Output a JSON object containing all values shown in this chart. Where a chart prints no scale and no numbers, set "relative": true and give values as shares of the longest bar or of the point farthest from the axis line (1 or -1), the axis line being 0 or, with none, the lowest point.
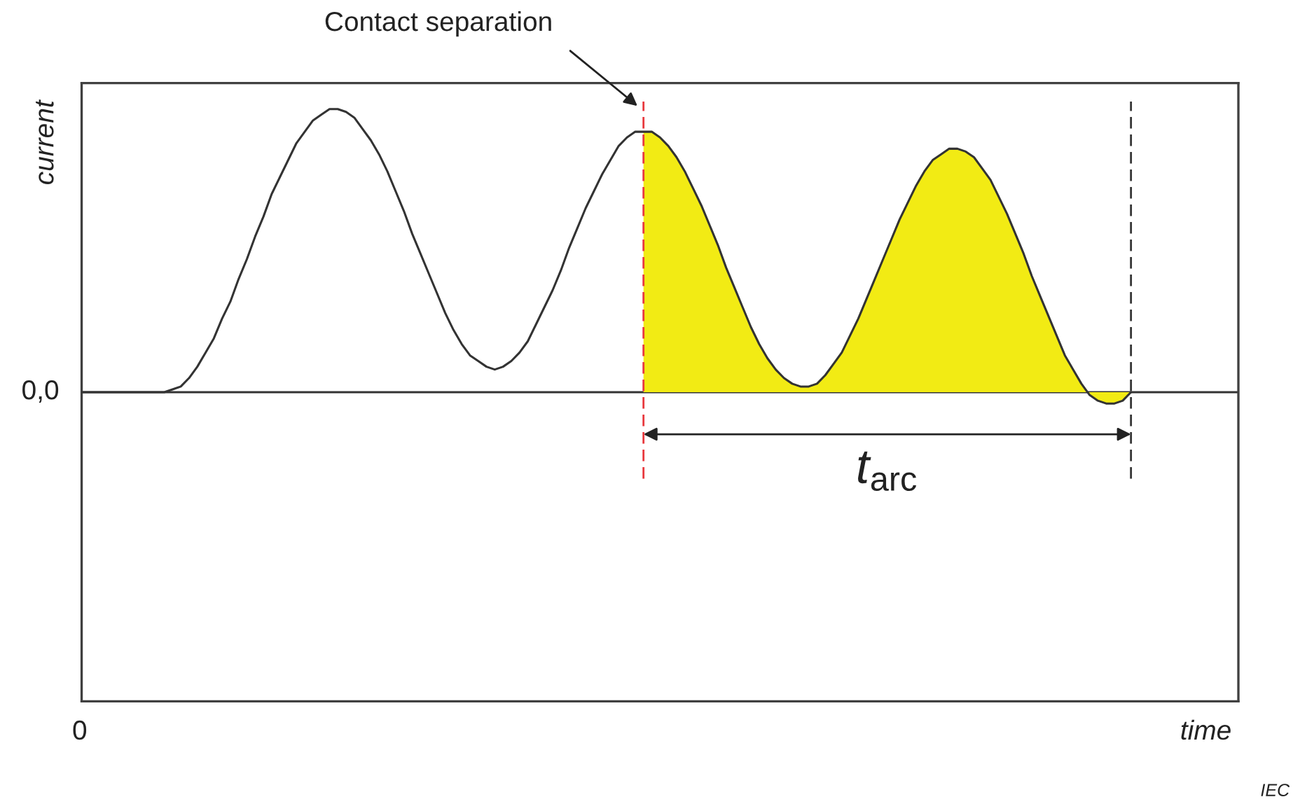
{
  "chart_data": {
    "type": "line",
    "relative": true,
    "ylabel": "current",
    "categories": [
      null,
      null,
      null,
      null,
      null,
      null,
      null,
      null,
      null,
      null,
      null,
      null,
      null,
      null,
      null,
      null,
      null,
      null,
      null,
      null,
      null,
      null,
      null,
      null,
      null,
      null,
      null,
      null,
      null,
      null,
      null,
      null,
      null,
      null,
      null,
      null,
      null,
      null,
      null,
      null,
      null,
      null,
      null,
      null,
      null,
      null,
      null,
      null,
      null,
      null,
      null,
      null,
      null,
      null,
      null,
      null,
      null,
      null,
      null,
      null,
      null,
      null,
      null,
      null,
      null,
      null,
      null,
      null,
      null,
      null,
      null,
      null,
      null,
      null,
      null,
      null,
      null,
      null,
      null,
      null,
      null,
      null,
      null,
      null,
      null,
      null,
      null,
      null,
      null,
      null,
      null,
      null,
      null,
      null,
      null,
      null,
      null,
      null,
      null,
      null,
      null,
      null,
      null,
      null,
      null,
      null,
      null,
      null,
      null,
      null,
      null,
      null,
      null,
      null,
      null,
      null,
      null,
      null,
      null,
      null,
      null,
      null,
      null,
      null,
      null,
      null,
      null,
      null,
      null,
      null,
      null,
      null,
      null,
      null,
      null,
      null,
      null,
      null,
      null,
      null,
      null
    ],
    "series": [
      {
        "type": "area",
        "color": "#f2eb14",
        "values": [
          null,
          null,
          null,
          null,
          null,
          null,
          null,
          null,
          null,
          null,
          null,
          null,
          null,
          null,
          null,
          null,
          null,
          null,
          null,
          null,
          null,
          null,
          null,
          null,
          null,
          null,
          null,
          null,
          null,
          null,
          null,
          null,
          null,
          null,
          null,
          null,
          null,
          null,
          null,
          null,
          null,
          null,
          null,
          null,
          null,
          null,
          null,
          null,
          null,
          null,
          null,
          null,
          null,
          null,
          null,
          null,
          null,
          null,
          null,
          null,
          null,
          null,
          null,
          null,
          null,
          null,
          null,
          null,
          0.92,
          0.92,
          0.9,
          0.87,
          0.83,
          0.78,
          0.72,
          0.66,
          0.59,
          0.52,
          0.44,
          0.37,
          0.3,
          0.23,
          0.17,
          0.12,
          0.08,
          0.05,
          0.03,
          0.02,
          0.02,
          0.03,
          0.06,
          0.1,
          0.14,
          0.2,
          0.26,
          0.33,
          0.4,
          0.47,
          0.54,
          0.61,
          0.67,
          0.73,
          0.78,
          0.82,
          0.84,
          0.86,
          0.86,
          0.85,
          0.83,
          0.79,
          0.75,
          0.69,
          0.63,
          0.56,
          0.49,
          0.41,
          0.34,
          0.27,
          0.2,
          0.13,
          0.08,
          0.03,
          -0.01,
          -0.03,
          -0.04,
          -0.04,
          -0.03,
          0,
          null,
          null,
          null,
          null,
          null,
          null,
          null,
          null,
          null,
          null,
          null,
          null,
          null
        ]
      },
      {
        "color": "#333333",
        "values": [
          0,
          0,
          0,
          0,
          0,
          0,
          0,
          0,
          0,
          0,
          0,
          0.01,
          0.02,
          0.05,
          0.09,
          0.14,
          0.19,
          0.26,
          0.32,
          0.4,
          0.47,
          0.55,
          0.62,
          0.7,
          0.76,
          0.82,
          0.88,
          0.92,
          0.96,
          0.98,
          1.0,
          1.0,
          0.99,
          0.97,
          0.93,
          0.89,
          0.84,
          0.78,
          0.71,
          0.64,
          0.56,
          0.49,
          0.42,
          0.35,
          0.28,
          0.22,
          0.17,
          0.13,
          0.11,
          0.09,
          0.08,
          0.09,
          0.11,
          0.14,
          0.18,
          0.24,
          0.3,
          0.36,
          0.43,
          0.51,
          0.58,
          0.65,
          0.71,
          0.77,
          0.82,
          0.87,
          0.9,
          0.92,
          0.92,
          0.92,
          0.9,
          0.87,
          0.83,
          0.78,
          0.72,
          0.66,
          0.59,
          0.52,
          0.44,
          0.37,
          0.3,
          0.23,
          0.17,
          0.12,
          0.08,
          0.05,
          0.03,
          0.02,
          0.02,
          0.03,
          0.06,
          0.1,
          0.14,
          0.2,
          0.26,
          0.33,
          0.4,
          0.47,
          0.54,
          0.61,
          0.67,
          0.73,
          0.78,
          0.82,
          0.84,
          0.86,
          0.86,
          0.85,
          0.83,
          0.79,
          0.75,
          0.69,
          0.63,
          0.56,
          0.49,
          0.41,
          0.34,
          0.27,
          0.2,
          0.13,
          0.08,
          0.03,
          -0.01,
          -0.03,
          -0.04,
          -0.04,
          -0.03,
          0,
          null,
          null,
          null,
          null,
          null,
          null,
          null,
          null,
          null,
          null,
          null,
          null,
          null
        ]
      }
    ],
    "ref_lines": [
      {
        "axis": "y",
        "value": 0,
        "label": "0,0",
        "color": "#333333"
      }
    ],
    "annotations": [
      "Contact separation",
      "t$_{arc}$",
      "0",
      "time",
      "IEC"
    ]
  }
}
